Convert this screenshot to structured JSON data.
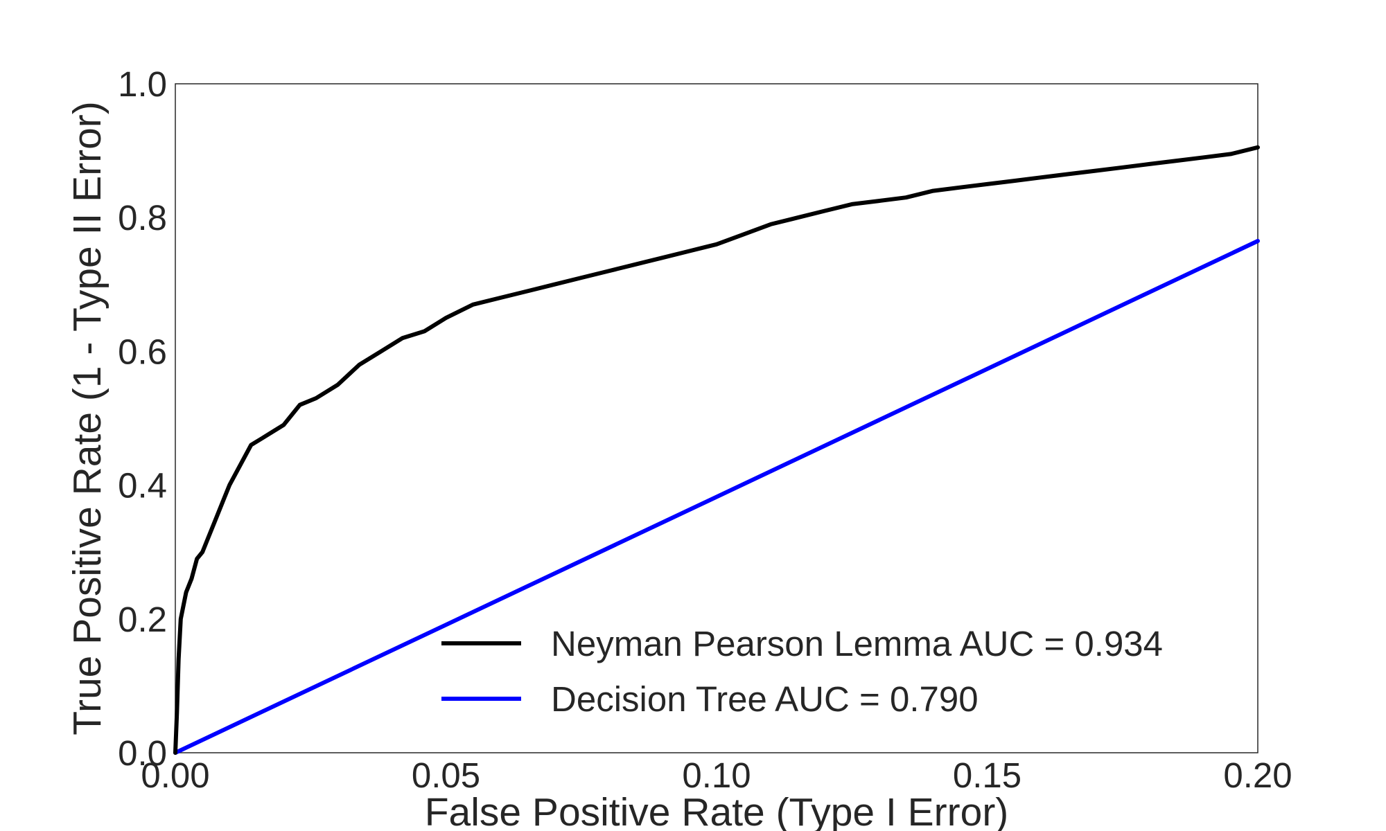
{
  "chart_data": {
    "type": "line",
    "title": "",
    "xlabel": "False Positive Rate (Type I Error)",
    "ylabel": "True Positive Rate (1 - Type II Error)",
    "xlim": [
      0.0,
      0.2
    ],
    "ylim": [
      0.0,
      1.0
    ],
    "xticks": [
      "0.00",
      "0.05",
      "0.10",
      "0.15",
      "0.20"
    ],
    "yticks": [
      "0.0",
      "0.2",
      "0.4",
      "0.6",
      "0.8",
      "1.0"
    ],
    "grid": false,
    "legend_position": "lower-right",
    "series": [
      {
        "name": "Neyman Pearson Lemma AUC = 0.934",
        "color": "#000000",
        "x": [
          0.0,
          0.0003,
          0.0006,
          0.001,
          0.0015,
          0.002,
          0.003,
          0.004,
          0.005,
          0.006,
          0.007,
          0.008,
          0.009,
          0.01,
          0.012,
          0.014,
          0.016,
          0.018,
          0.02,
          0.023,
          0.026,
          0.03,
          0.034,
          0.038,
          0.042,
          0.046,
          0.05,
          0.055,
          0.06,
          0.065,
          0.07,
          0.075,
          0.08,
          0.085,
          0.09,
          0.095,
          0.1,
          0.105,
          0.11,
          0.115,
          0.12,
          0.125,
          0.13,
          0.135,
          0.14,
          0.145,
          0.15,
          0.155,
          0.16,
          0.165,
          0.17,
          0.175,
          0.18,
          0.185,
          0.19,
          0.195,
          0.2
        ],
        "y": [
          0.0,
          0.06,
          0.14,
          0.2,
          0.22,
          0.24,
          0.26,
          0.29,
          0.3,
          0.32,
          0.34,
          0.36,
          0.38,
          0.4,
          0.43,
          0.46,
          0.47,
          0.48,
          0.49,
          0.52,
          0.53,
          0.55,
          0.58,
          0.6,
          0.62,
          0.63,
          0.65,
          0.67,
          0.68,
          0.69,
          0.7,
          0.71,
          0.72,
          0.73,
          0.74,
          0.75,
          0.76,
          0.775,
          0.79,
          0.8,
          0.81,
          0.82,
          0.825,
          0.83,
          0.84,
          0.845,
          0.85,
          0.855,
          0.86,
          0.865,
          0.87,
          0.875,
          0.88,
          0.885,
          0.89,
          0.895,
          0.905
        ]
      },
      {
        "name": "Decision Tree AUC = 0.790",
        "color": "#0000ff",
        "x": [
          0.0,
          0.2
        ],
        "y": [
          0.0,
          0.765
        ]
      }
    ]
  }
}
